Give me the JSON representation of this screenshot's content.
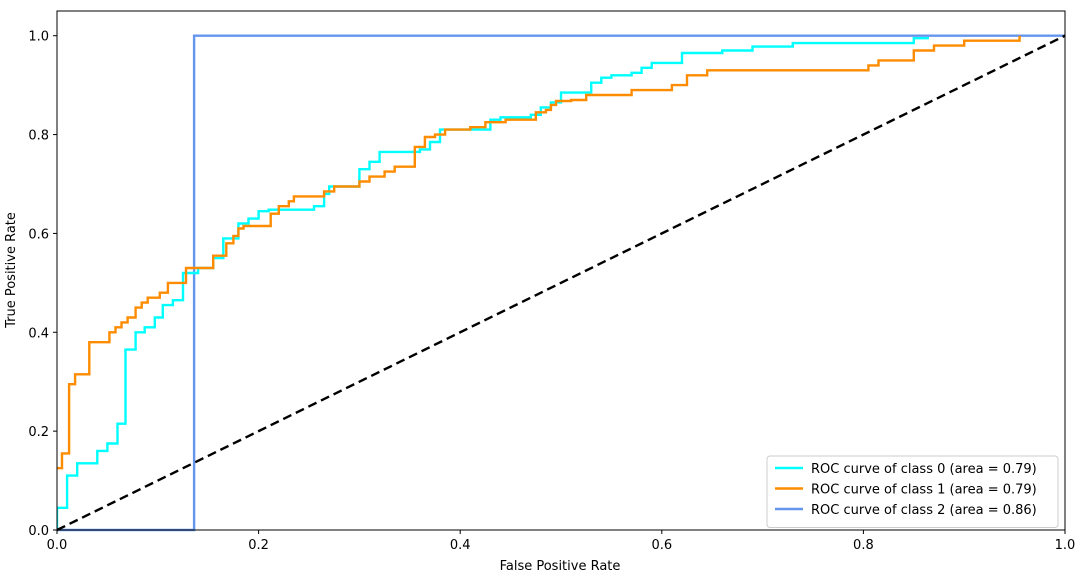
{
  "chart_data": {
    "type": "line",
    "title": "",
    "xlabel": "False Positive Rate",
    "ylabel": "True Positive Rate",
    "xlim": [
      0.0,
      1.0
    ],
    "ylim": [
      0.0,
      1.05
    ],
    "xticks": [
      0.0,
      0.2,
      0.4,
      0.6,
      0.8,
      1.0
    ],
    "yticks": [
      0.0,
      0.2,
      0.4,
      0.6,
      0.8,
      1.0
    ],
    "xtick_labels": [
      "0.0",
      "0.2",
      "0.4",
      "0.6",
      "0.8",
      "1.0"
    ],
    "ytick_labels": [
      "0.0",
      "0.2",
      "0.4",
      "0.6",
      "0.8",
      "1.0"
    ],
    "grid": false,
    "legend_position": "lower-right",
    "series": [
      {
        "name": "ROC curve of class 0 (area = 0.79)",
        "color": "#00ffff",
        "style": "step",
        "points": [
          [
            0,
            0
          ],
          [
            0,
            0.045
          ],
          [
            0.01,
            0.045
          ],
          [
            0.01,
            0.11
          ],
          [
            0.02,
            0.11
          ],
          [
            0.02,
            0.135
          ],
          [
            0.04,
            0.135
          ],
          [
            0.04,
            0.16
          ],
          [
            0.05,
            0.16
          ],
          [
            0.05,
            0.175
          ],
          [
            0.06,
            0.175
          ],
          [
            0.06,
            0.215
          ],
          [
            0.068,
            0.215
          ],
          [
            0.068,
            0.365
          ],
          [
            0.078,
            0.365
          ],
          [
            0.078,
            0.4
          ],
          [
            0.087,
            0.4
          ],
          [
            0.087,
            0.41
          ],
          [
            0.097,
            0.41
          ],
          [
            0.097,
            0.43
          ],
          [
            0.105,
            0.43
          ],
          [
            0.105,
            0.455
          ],
          [
            0.115,
            0.455
          ],
          [
            0.115,
            0.465
          ],
          [
            0.125,
            0.465
          ],
          [
            0.125,
            0.52
          ],
          [
            0.14,
            0.52
          ],
          [
            0.14,
            0.53
          ],
          [
            0.155,
            0.53
          ],
          [
            0.155,
            0.55
          ],
          [
            0.165,
            0.55
          ],
          [
            0.165,
            0.59
          ],
          [
            0.18,
            0.59
          ],
          [
            0.18,
            0.62
          ],
          [
            0.19,
            0.62
          ],
          [
            0.19,
            0.63
          ],
          [
            0.2,
            0.63
          ],
          [
            0.2,
            0.645
          ],
          [
            0.21,
            0.645
          ],
          [
            0.21,
            0.648
          ],
          [
            0.255,
            0.648
          ],
          [
            0.255,
            0.655
          ],
          [
            0.265,
            0.655
          ],
          [
            0.265,
            0.68
          ],
          [
            0.27,
            0.68
          ],
          [
            0.27,
            0.695
          ],
          [
            0.3,
            0.695
          ],
          [
            0.3,
            0.73
          ],
          [
            0.31,
            0.73
          ],
          [
            0.31,
            0.745
          ],
          [
            0.32,
            0.745
          ],
          [
            0.32,
            0.765
          ],
          [
            0.36,
            0.765
          ],
          [
            0.36,
            0.77
          ],
          [
            0.37,
            0.77
          ],
          [
            0.37,
            0.785
          ],
          [
            0.38,
            0.785
          ],
          [
            0.38,
            0.81
          ],
          [
            0.43,
            0.81
          ],
          [
            0.43,
            0.83
          ],
          [
            0.44,
            0.83
          ],
          [
            0.44,
            0.835
          ],
          [
            0.47,
            0.835
          ],
          [
            0.47,
            0.84
          ],
          [
            0.48,
            0.84
          ],
          [
            0.48,
            0.855
          ],
          [
            0.49,
            0.855
          ],
          [
            0.49,
            0.865
          ],
          [
            0.5,
            0.865
          ],
          [
            0.5,
            0.885
          ],
          [
            0.53,
            0.885
          ],
          [
            0.53,
            0.905
          ],
          [
            0.54,
            0.905
          ],
          [
            0.54,
            0.915
          ],
          [
            0.55,
            0.915
          ],
          [
            0.55,
            0.92
          ],
          [
            0.57,
            0.92
          ],
          [
            0.57,
            0.925
          ],
          [
            0.58,
            0.925
          ],
          [
            0.58,
            0.935
          ],
          [
            0.59,
            0.935
          ],
          [
            0.59,
            0.945
          ],
          [
            0.62,
            0.945
          ],
          [
            0.62,
            0.965
          ],
          [
            0.66,
            0.965
          ],
          [
            0.66,
            0.97
          ],
          [
            0.69,
            0.97
          ],
          [
            0.69,
            0.978
          ],
          [
            0.73,
            0.978
          ],
          [
            0.73,
            0.985
          ],
          [
            0.85,
            0.985
          ],
          [
            0.85,
            0.995
          ],
          [
            0.865,
            0.995
          ]
        ]
      },
      {
        "name": "ROC curve of class 1 (area = 0.79)",
        "color": "#ff8c00",
        "style": "step",
        "points": [
          [
            0,
            0.125
          ],
          [
            0.005,
            0.125
          ],
          [
            0.005,
            0.155
          ],
          [
            0.012,
            0.155
          ],
          [
            0.012,
            0.295
          ],
          [
            0.018,
            0.295
          ],
          [
            0.018,
            0.315
          ],
          [
            0.032,
            0.315
          ],
          [
            0.032,
            0.38
          ],
          [
            0.052,
            0.38
          ],
          [
            0.052,
            0.4
          ],
          [
            0.058,
            0.4
          ],
          [
            0.058,
            0.41
          ],
          [
            0.064,
            0.41
          ],
          [
            0.064,
            0.42
          ],
          [
            0.07,
            0.42
          ],
          [
            0.07,
            0.43
          ],
          [
            0.078,
            0.43
          ],
          [
            0.078,
            0.45
          ],
          [
            0.084,
            0.45
          ],
          [
            0.084,
            0.46
          ],
          [
            0.09,
            0.46
          ],
          [
            0.09,
            0.47
          ],
          [
            0.102,
            0.47
          ],
          [
            0.102,
            0.48
          ],
          [
            0.11,
            0.48
          ],
          [
            0.11,
            0.5
          ],
          [
            0.128,
            0.5
          ],
          [
            0.128,
            0.53
          ],
          [
            0.155,
            0.53
          ],
          [
            0.155,
            0.555
          ],
          [
            0.168,
            0.555
          ],
          [
            0.168,
            0.58
          ],
          [
            0.175,
            0.58
          ],
          [
            0.175,
            0.595
          ],
          [
            0.18,
            0.595
          ],
          [
            0.18,
            0.61
          ],
          [
            0.185,
            0.61
          ],
          [
            0.185,
            0.615
          ],
          [
            0.212,
            0.615
          ],
          [
            0.212,
            0.64
          ],
          [
            0.22,
            0.64
          ],
          [
            0.22,
            0.655
          ],
          [
            0.23,
            0.655
          ],
          [
            0.23,
            0.665
          ],
          [
            0.235,
            0.665
          ],
          [
            0.235,
            0.675
          ],
          [
            0.265,
            0.675
          ],
          [
            0.265,
            0.685
          ],
          [
            0.275,
            0.685
          ],
          [
            0.275,
            0.695
          ],
          [
            0.3,
            0.695
          ],
          [
            0.3,
            0.705
          ],
          [
            0.31,
            0.705
          ],
          [
            0.31,
            0.715
          ],
          [
            0.325,
            0.715
          ],
          [
            0.325,
            0.725
          ],
          [
            0.335,
            0.725
          ],
          [
            0.335,
            0.735
          ],
          [
            0.355,
            0.735
          ],
          [
            0.355,
            0.775
          ],
          [
            0.365,
            0.775
          ],
          [
            0.365,
            0.795
          ],
          [
            0.375,
            0.795
          ],
          [
            0.375,
            0.8
          ],
          [
            0.385,
            0.8
          ],
          [
            0.385,
            0.81
          ],
          [
            0.41,
            0.81
          ],
          [
            0.41,
            0.815
          ],
          [
            0.425,
            0.815
          ],
          [
            0.425,
            0.825
          ],
          [
            0.445,
            0.825
          ],
          [
            0.445,
            0.83
          ],
          [
            0.475,
            0.83
          ],
          [
            0.475,
            0.845
          ],
          [
            0.485,
            0.845
          ],
          [
            0.485,
            0.85
          ],
          [
            0.49,
            0.85
          ],
          [
            0.49,
            0.86
          ],
          [
            0.495,
            0.86
          ],
          [
            0.495,
            0.868
          ],
          [
            0.51,
            0.868
          ],
          [
            0.51,
            0.87
          ],
          [
            0.525,
            0.87
          ],
          [
            0.525,
            0.88
          ],
          [
            0.57,
            0.88
          ],
          [
            0.57,
            0.89
          ],
          [
            0.61,
            0.89
          ],
          [
            0.61,
            0.9
          ],
          [
            0.625,
            0.9
          ],
          [
            0.625,
            0.92
          ],
          [
            0.645,
            0.92
          ],
          [
            0.645,
            0.93
          ],
          [
            0.805,
            0.93
          ],
          [
            0.805,
            0.94
          ],
          [
            0.815,
            0.94
          ],
          [
            0.815,
            0.95
          ],
          [
            0.85,
            0.95
          ],
          [
            0.85,
            0.97
          ],
          [
            0.87,
            0.97
          ],
          [
            0.87,
            0.98
          ],
          [
            0.9,
            0.98
          ],
          [
            0.9,
            0.99
          ],
          [
            0.955,
            0.99
          ],
          [
            0.955,
            1.0
          ]
        ]
      },
      {
        "name": "ROC curve of class 2 (area = 0.86)",
        "color": "#6495ed",
        "style": "step",
        "points": [
          [
            0,
            0
          ],
          [
            0.136,
            0
          ],
          [
            0.136,
            1.0
          ],
          [
            1.0,
            1.0
          ]
        ]
      },
      {
        "name": "",
        "color": "#000000",
        "style": "dashed",
        "points": [
          [
            0,
            0
          ],
          [
            1,
            1
          ]
        ]
      }
    ]
  }
}
